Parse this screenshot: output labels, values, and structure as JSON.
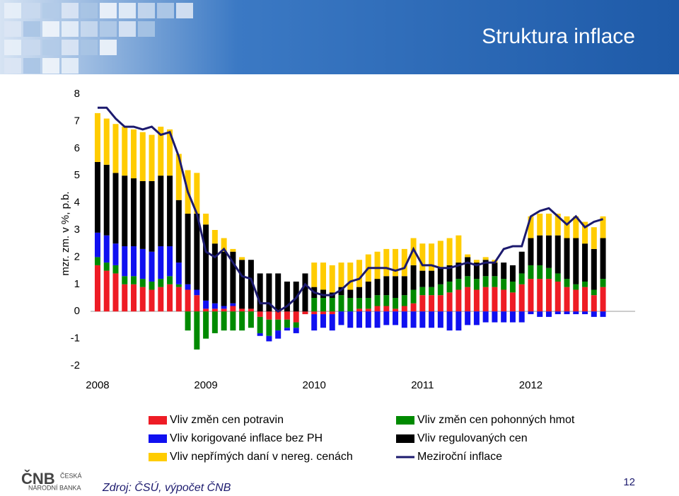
{
  "chart_data": {
    "type": "bar",
    "title": "Struktura inflace",
    "ylabel": "mzr. zm. v %, p.b.",
    "categories": [
      "2008",
      null,
      null,
      null,
      null,
      null,
      null,
      null,
      null,
      null,
      null,
      null,
      "2009",
      null,
      null,
      null,
      null,
      null,
      null,
      null,
      null,
      null,
      null,
      null,
      "2010",
      null,
      null,
      null,
      null,
      null,
      null,
      null,
      null,
      null,
      null,
      null,
      "2011",
      null,
      null,
      null,
      null,
      null,
      null,
      null,
      null,
      null,
      null,
      null,
      "2012",
      null,
      null,
      null,
      null,
      null,
      null,
      null,
      null
    ],
    "ylim": [
      -2,
      8
    ],
    "yticks": [
      -2,
      -1,
      0,
      1,
      2,
      3,
      4,
      5,
      6,
      7,
      8
    ],
    "series": [
      {
        "name": "Vliv změn cen potravin",
        "type": "bar",
        "color": "#ee1c25",
        "values": [
          1.7,
          1.5,
          1.4,
          1.0,
          1.0,
          0.9,
          0.8,
          0.9,
          1.0,
          0.9,
          0.8,
          0.6,
          0.1,
          0.1,
          0.1,
          0.2,
          0.1,
          0.1,
          -0.2,
          -0.3,
          -0.3,
          -0.3,
          -0.4,
          -0.1,
          -0.1,
          -0.1,
          -0.1,
          0.0,
          0.0,
          0.1,
          0.1,
          0.2,
          0.2,
          0.1,
          0.2,
          0.3,
          0.6,
          0.6,
          0.6,
          0.7,
          0.8,
          0.9,
          0.8,
          0.9,
          0.9,
          0.8,
          0.7,
          1.0,
          1.2,
          1.2,
          1.2,
          1.1,
          0.9,
          0.8,
          0.9,
          0.6,
          0.9
        ]
      },
      {
        "name": "Vliv změn cen pohonných hmot",
        "type": "bar",
        "color": "#008a00",
        "values": [
          0.3,
          0.3,
          0.3,
          0.3,
          0.3,
          0.3,
          0.3,
          0.3,
          0.3,
          0.1,
          -0.7,
          -1.4,
          -1.0,
          -0.8,
          -0.7,
          -0.7,
          -0.7,
          -0.6,
          -0.6,
          -0.6,
          -0.4,
          -0.3,
          -0.2,
          0.0,
          0.5,
          0.5,
          0.5,
          0.6,
          0.5,
          0.4,
          0.4,
          0.4,
          0.4,
          0.4,
          0.4,
          0.5,
          0.3,
          0.3,
          0.4,
          0.4,
          0.4,
          0.4,
          0.4,
          0.4,
          0.4,
          0.4,
          0.4,
          0.4,
          0.5,
          0.5,
          0.4,
          0.3,
          0.3,
          0.2,
          0.2,
          0.2,
          0.3
        ]
      },
      {
        "name": "Vliv korigované inflace bez PH",
        "type": "bar",
        "color": "#1010f0",
        "values": [
          0.9,
          1.0,
          0.8,
          1.1,
          1.1,
          1.1,
          1.1,
          1.2,
          1.1,
          0.8,
          0.2,
          0.2,
          0.3,
          0.2,
          0.1,
          0.1,
          0.0,
          0.0,
          -0.1,
          -0.2,
          -0.3,
          -0.1,
          -0.2,
          0.0,
          -0.6,
          -0.5,
          -0.6,
          -0.5,
          -0.6,
          -0.6,
          -0.6,
          -0.6,
          -0.5,
          -0.5,
          -0.6,
          -0.6,
          -0.6,
          -0.6,
          -0.6,
          -0.7,
          -0.7,
          -0.5,
          -0.5,
          -0.4,
          -0.4,
          -0.4,
          -0.4,
          -0.4,
          -0.1,
          -0.2,
          -0.2,
          -0.1,
          -0.1,
          -0.1,
          -0.1,
          -0.2,
          -0.2
        ]
      },
      {
        "name": "Vliv regulovaných cen",
        "type": "bar",
        "color": "#000000",
        "values": [
          2.6,
          2.6,
          2.6,
          2.6,
          2.5,
          2.5,
          2.6,
          2.6,
          2.6,
          2.3,
          2.6,
          2.8,
          2.8,
          2.2,
          2.0,
          1.9,
          1.8,
          1.8,
          1.4,
          1.4,
          1.4,
          1.1,
          1.1,
          1.4,
          0.4,
          0.3,
          0.2,
          0.3,
          0.3,
          0.4,
          0.6,
          0.6,
          0.7,
          0.8,
          0.7,
          0.9,
          0.6,
          0.6,
          0.6,
          0.6,
          0.6,
          0.7,
          0.6,
          0.6,
          0.5,
          0.6,
          0.6,
          0.8,
          1.0,
          1.1,
          1.2,
          1.4,
          1.5,
          1.7,
          1.4,
          1.5,
          1.5
        ]
      },
      {
        "name": "Vliv nepřímých daní v nereg. cenách",
        "type": "bar",
        "color": "#ffcc00",
        "values": [
          1.8,
          1.7,
          1.8,
          1.8,
          1.8,
          1.8,
          1.7,
          1.8,
          1.7,
          1.7,
          1.6,
          1.5,
          0.4,
          0.5,
          0.5,
          0.1,
          0.1,
          0.0,
          0.0,
          0.0,
          0.0,
          0.0,
          0.0,
          0.0,
          0.9,
          1.0,
          1.0,
          0.9,
          1.0,
          1.0,
          1.0,
          1.0,
          1.0,
          1.0,
          1.0,
          1.0,
          1.0,
          1.0,
          1.0,
          1.0,
          1.0,
          0.1,
          0.1,
          0.1,
          0.1,
          0.0,
          0.0,
          0.0,
          0.8,
          0.8,
          0.8,
          0.8,
          0.8,
          0.8,
          0.8,
          0.8,
          0.8
        ]
      },
      {
        "name": "Meziroční inflace",
        "type": "line",
        "color": "#1c1a6e",
        "values": [
          7.5,
          7.5,
          7.1,
          6.8,
          6.8,
          6.7,
          6.8,
          6.5,
          6.6,
          5.7,
          4.4,
          3.6,
          2.2,
          2.0,
          2.3,
          1.8,
          1.3,
          1.2,
          0.3,
          0.3,
          0.0,
          0.2,
          0.5,
          1.0,
          0.7,
          0.6,
          0.6,
          0.8,
          1.1,
          1.2,
          1.6,
          1.6,
          1.6,
          1.5,
          1.6,
          2.3,
          1.7,
          1.7,
          1.6,
          1.6,
          1.7,
          1.8,
          1.7,
          1.8,
          1.8,
          2.3,
          2.4,
          2.4,
          3.5,
          3.7,
          3.8,
          3.5,
          3.2,
          3.5,
          3.1,
          3.3,
          3.4
        ]
      }
    ]
  },
  "slide": {
    "source": "Zdroj: ČSÚ, výpočet ČNB",
    "page_number": 12,
    "logo": "ČNB",
    "logo_text": [
      "ČESKÁ",
      "NÁRODNÍ BANKA"
    ]
  }
}
